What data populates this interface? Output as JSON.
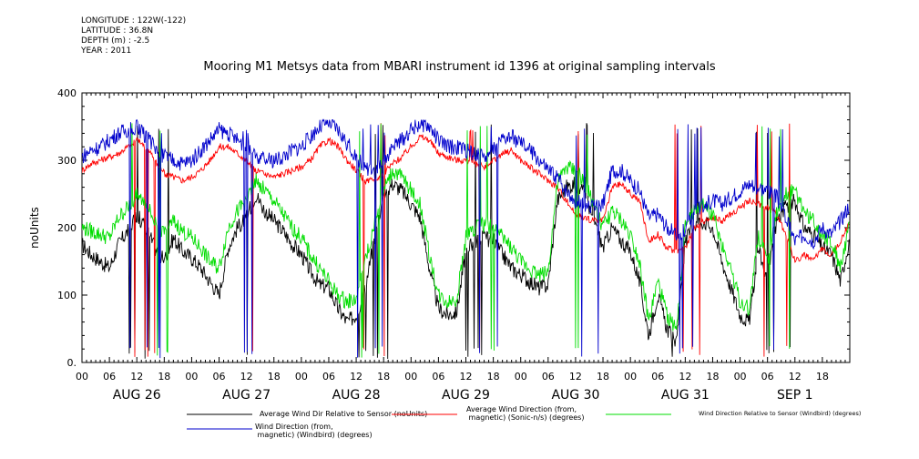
{
  "header": {
    "longitude": "LONGITUDE : 122W(-122)",
    "latitude": "LATITUDE : 36.8N",
    "depth": "DEPTH (m) : -2.5",
    "year": "YEAR : 2011"
  },
  "chart_data": {
    "type": "line",
    "title": "Mooring M1 Metsys data from MBARI instrument id 1396 at original sampling intervals",
    "ylabel": "noUnits",
    "xlabel": "",
    "ylim": [
      0,
      400
    ],
    "yticks": [
      0,
      100,
      200,
      300,
      400
    ],
    "ytick_labels": [
      "0.",
      "100",
      "200",
      "300",
      "400"
    ],
    "xlim": [
      0,
      168
    ],
    "hour_tick_labels": [
      "00",
      "06",
      "12",
      "18",
      "00",
      "06",
      "12",
      "18",
      "00",
      "06",
      "12",
      "18",
      "00",
      "06",
      "12",
      "18",
      "00",
      "06",
      "12",
      "18",
      "00",
      "06",
      "12",
      "18",
      "00",
      "06",
      "12",
      "18"
    ],
    "day_labels": [
      "AUG 26",
      "AUG 27",
      "AUG 28",
      "AUG 29",
      "AUG 30",
      "AUG 31",
      "SEP  1"
    ],
    "grid": false,
    "legend_position": "bottom",
    "series": [
      {
        "name": "Average Wind Dir Relative to Sensor (noUnits)",
        "color": "#000000",
        "x": [
          0,
          2,
          4,
          6,
          8,
          10,
          12,
          14,
          16,
          18,
          20,
          22,
          24,
          26,
          28,
          30,
          32,
          34,
          36,
          38,
          40,
          42,
          44,
          46,
          48,
          50,
          52,
          54,
          56,
          58,
          60,
          62,
          64,
          66,
          68,
          70,
          72,
          74,
          76,
          78,
          80,
          82,
          84,
          86,
          88,
          90,
          92,
          94,
          96,
          98,
          100,
          102,
          104,
          106,
          108,
          110,
          112,
          114,
          116,
          118,
          120,
          122,
          124,
          126,
          128,
          130,
          132,
          134,
          136,
          138,
          140,
          142,
          144,
          146,
          148,
          150,
          152,
          154,
          156,
          158,
          160,
          162,
          164,
          166,
          168
        ],
        "values": [
          175,
          160,
          150,
          140,
          175,
          195,
          220,
          200,
          170,
          150,
          185,
          165,
          155,
          140,
          120,
          100,
          170,
          200,
          215,
          250,
          225,
          210,
          195,
          175,
          160,
          135,
          115,
          110,
          80,
          60,
          70,
          110,
          185,
          250,
          265,
          255,
          235,
          215,
          140,
          80,
          70,
          75,
          165,
          180,
          185,
          180,
          160,
          140,
          130,
          120,
          110,
          115,
          240,
          260,
          265,
          250,
          210,
          170,
          200,
          180,
          165,
          120,
          40,
          100,
          50,
          30,
          180,
          205,
          210,
          200,
          150,
          110,
          70,
          60,
          170,
          120,
          210,
          230,
          240,
          200,
          190,
          170,
          160,
          120,
          185
        ]
      },
      {
        "name": "Average Wind Direction (from, magnetic) (Sonic-n/s) (degrees)",
        "color": "#ff0000",
        "x": [
          0,
          2,
          4,
          6,
          8,
          10,
          12,
          14,
          16,
          18,
          20,
          22,
          24,
          26,
          28,
          30,
          32,
          34,
          36,
          38,
          40,
          42,
          44,
          46,
          48,
          50,
          52,
          54,
          56,
          58,
          60,
          62,
          64,
          66,
          68,
          70,
          72,
          74,
          76,
          78,
          80,
          82,
          84,
          86,
          88,
          90,
          92,
          94,
          96,
          98,
          100,
          102,
          104,
          106,
          108,
          110,
          112,
          114,
          116,
          118,
          120,
          122,
          124,
          126,
          128,
          130,
          132,
          134,
          136,
          138,
          140,
          142,
          144,
          146,
          148,
          150,
          152,
          154,
          156,
          158,
          160,
          162,
          164,
          166,
          168
        ],
        "values": [
          285,
          295,
          300,
          305,
          310,
          320,
          330,
          320,
          300,
          280,
          275,
          270,
          275,
          285,
          300,
          320,
          320,
          310,
          300,
          285,
          280,
          275,
          280,
          285,
          290,
          300,
          320,
          330,
          320,
          300,
          285,
          270,
          270,
          280,
          295,
          305,
          320,
          335,
          330,
          310,
          305,
          300,
          300,
          295,
          290,
          300,
          310,
          315,
          300,
          290,
          280,
          270,
          260,
          240,
          220,
          215,
          210,
          210,
          260,
          265,
          250,
          240,
          180,
          190,
          170,
          165,
          170,
          200,
          210,
          215,
          210,
          220,
          230,
          240,
          235,
          230,
          220,
          190,
          150,
          160,
          150,
          170,
          160,
          180,
          210
        ]
      },
      {
        "name": "Wind Direction Relative to Sensor (Windbird) (degrees)",
        "color": "#00dd00",
        "x": [
          0,
          2,
          4,
          6,
          8,
          10,
          12,
          14,
          16,
          18,
          20,
          22,
          24,
          26,
          28,
          30,
          32,
          34,
          36,
          38,
          40,
          42,
          44,
          46,
          48,
          50,
          52,
          54,
          56,
          58,
          60,
          62,
          64,
          66,
          68,
          70,
          72,
          74,
          76,
          78,
          80,
          82,
          84,
          86,
          88,
          90,
          92,
          94,
          96,
          98,
          100,
          102,
          104,
          106,
          108,
          110,
          112,
          114,
          116,
          118,
          120,
          122,
          124,
          126,
          128,
          130,
          132,
          134,
          136,
          138,
          140,
          142,
          144,
          146,
          148,
          150,
          152,
          154,
          156,
          158,
          160,
          162,
          164,
          166,
          168
        ],
        "values": [
          200,
          195,
          190,
          185,
          215,
          230,
          250,
          240,
          210,
          190,
          210,
          195,
          185,
          170,
          150,
          140,
          200,
          225,
          240,
          270,
          255,
          240,
          220,
          200,
          185,
          160,
          140,
          120,
          100,
          90,
          95,
          150,
          205,
          255,
          285,
          275,
          255,
          235,
          160,
          100,
          90,
          95,
          185,
          200,
          205,
          200,
          185,
          170,
          150,
          140,
          130,
          135,
          265,
          290,
          285,
          265,
          235,
          200,
          225,
          210,
          190,
          150,
          60,
          120,
          70,
          50,
          200,
          225,
          235,
          220,
          175,
          140,
          90,
          80,
          190,
          150,
          225,
          250,
          255,
          225,
          210,
          190,
          180,
          140,
          205
        ]
      },
      {
        "name": "Wind Direction (from, magnetic) (Windbird) (degrees)",
        "color": "#0000cc",
        "x": [
          0,
          2,
          4,
          6,
          8,
          10,
          12,
          14,
          16,
          18,
          20,
          22,
          24,
          26,
          28,
          30,
          32,
          34,
          36,
          38,
          40,
          42,
          44,
          46,
          48,
          50,
          52,
          54,
          56,
          58,
          60,
          62,
          64,
          66,
          68,
          70,
          72,
          74,
          76,
          78,
          80,
          82,
          84,
          86,
          88,
          90,
          92,
          94,
          96,
          98,
          100,
          102,
          104,
          106,
          108,
          110,
          112,
          114,
          116,
          118,
          120,
          122,
          124,
          126,
          128,
          130,
          132,
          134,
          136,
          138,
          140,
          142,
          144,
          146,
          148,
          150,
          152,
          154,
          156,
          158,
          160,
          162,
          164,
          166,
          168
        ],
        "values": [
          305,
          315,
          320,
          330,
          340,
          345,
          350,
          335,
          320,
          305,
          300,
          295,
          300,
          315,
          330,
          345,
          340,
          330,
          320,
          305,
          300,
          300,
          305,
          315,
          320,
          335,
          350,
          355,
          345,
          325,
          305,
          290,
          285,
          300,
          320,
          330,
          345,
          355,
          350,
          330,
          320,
          320,
          315,
          310,
          305,
          315,
          330,
          335,
          325,
          315,
          300,
          285,
          275,
          255,
          240,
          235,
          230,
          235,
          285,
          285,
          270,
          255,
          215,
          220,
          200,
          190,
          195,
          225,
          235,
          240,
          235,
          245,
          255,
          265,
          260,
          255,
          245,
          215,
          180,
          190,
          180,
          200,
          190,
          210,
          235
        ]
      }
    ]
  }
}
